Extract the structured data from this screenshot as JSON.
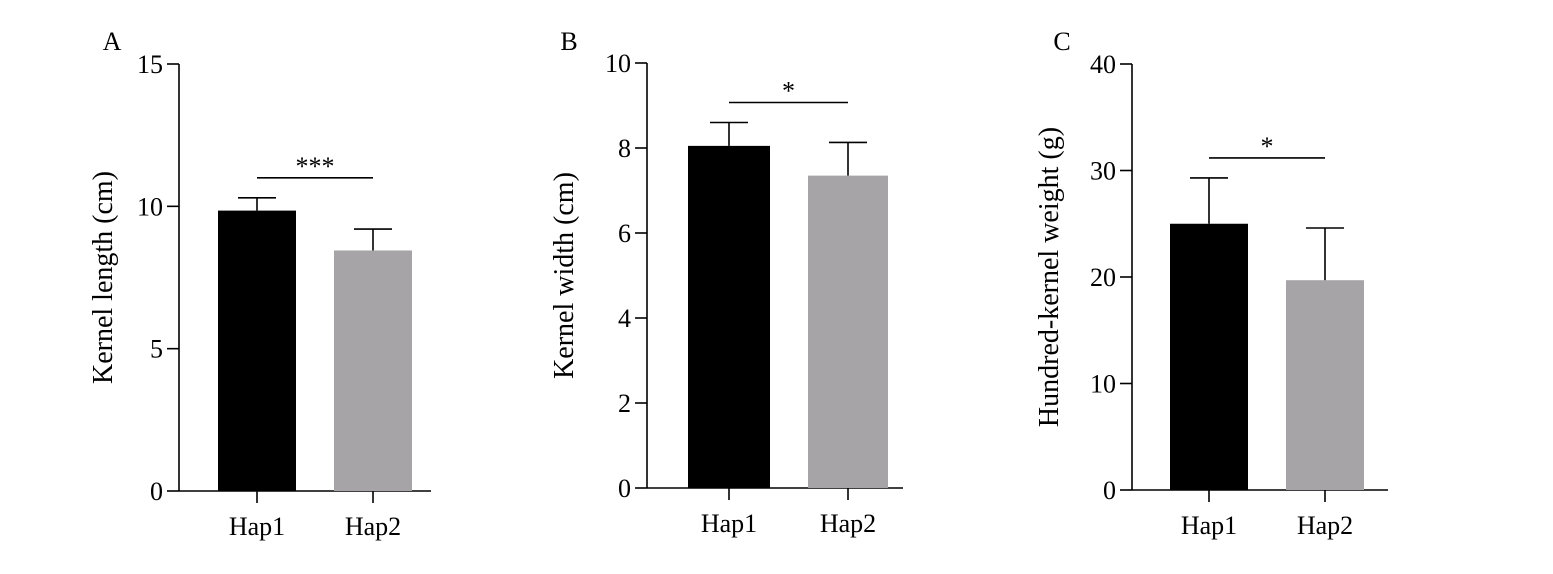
{
  "chart_data": [
    {
      "panel": "A",
      "type": "bar",
      "categories": [
        "Hap1",
        "Hap2"
      ],
      "values": [
        9.85,
        8.45
      ],
      "errors": [
        0.45,
        0.75
      ],
      "ylabel": "Kernel length (cm)",
      "ylim": [
        0,
        15
      ],
      "yticks": [
        0,
        5,
        10,
        15
      ],
      "significance": "***",
      "colors": [
        "#000000",
        "#a7a4a8"
      ]
    },
    {
      "panel": "B",
      "type": "bar",
      "categories": [
        "Hap1",
        "Hap2"
      ],
      "values": [
        8.05,
        7.35
      ],
      "errors": [
        0.55,
        0.78
      ],
      "ylabel": "Kernel width (cm)",
      "ylim": [
        0,
        10
      ],
      "yticks": [
        0,
        2,
        4,
        6,
        8,
        10
      ],
      "significance": "*",
      "colors": [
        "#000000",
        "#a7a4a8"
      ]
    },
    {
      "panel": "C",
      "type": "bar",
      "categories": [
        "Hap1",
        "Hap2"
      ],
      "values": [
        25.0,
        19.7
      ],
      "errors": [
        4.3,
        4.9
      ],
      "ylabel": "Hundred-kernel weight (g)",
      "ylim": [
        0,
        40
      ],
      "yticks": [
        0,
        10,
        20,
        30,
        40
      ],
      "significance": "*",
      "colors": [
        "#000000",
        "#a7a4a8"
      ]
    }
  ]
}
